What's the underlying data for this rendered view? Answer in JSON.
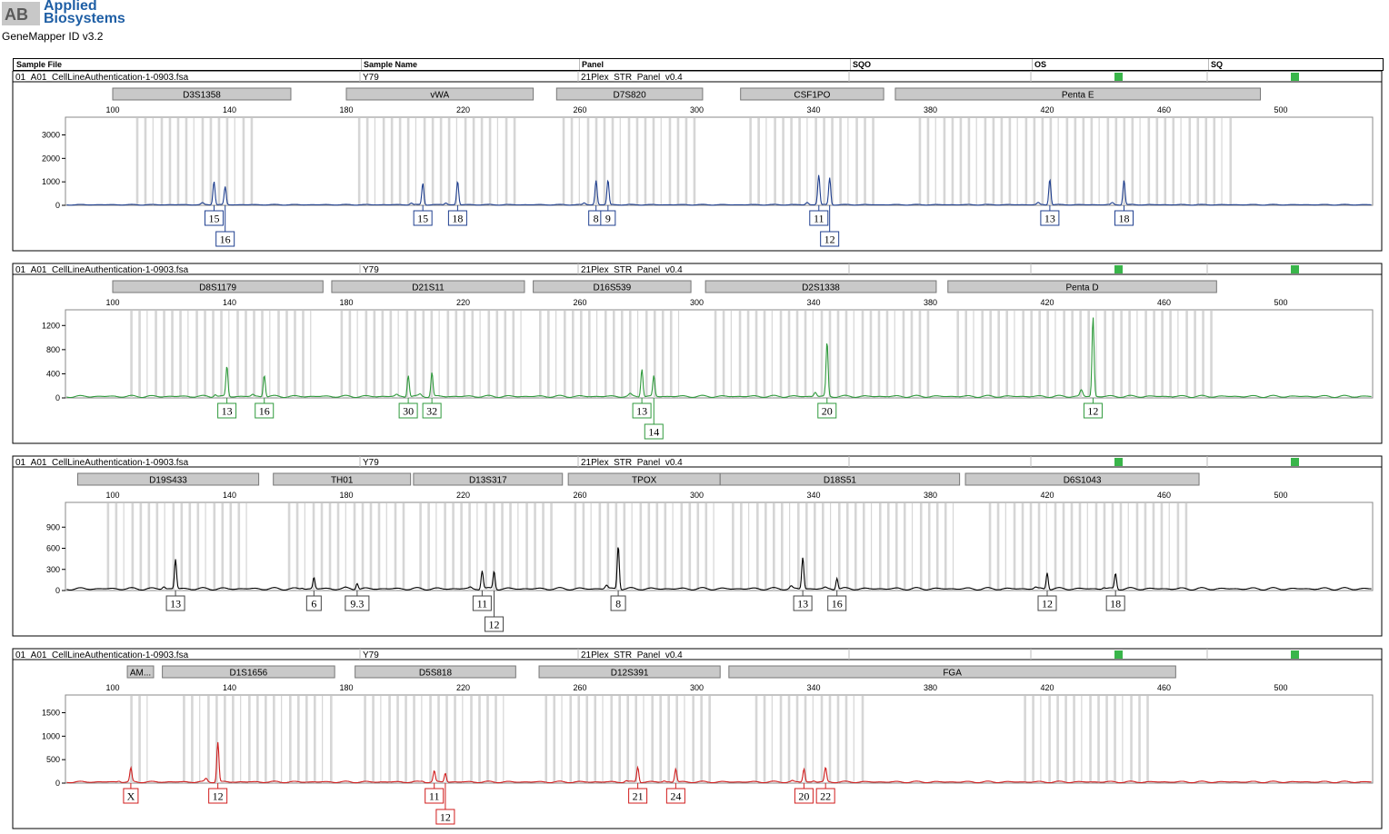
{
  "app": {
    "brand_lines": [
      "Applied",
      "Biosystems"
    ],
    "logo_letters": "AB",
    "version": "GeneMapper ID v3.2"
  },
  "table_header": {
    "sample_file": "Sample File",
    "sample_name": "Sample Name",
    "panel": "Panel",
    "sqo": "SQO",
    "os": "OS",
    "sq": "SQ"
  },
  "axis_ticks": [
    100,
    140,
    180,
    220,
    260,
    300,
    340,
    380,
    420,
    460,
    500
  ],
  "panels": [
    {
      "sample_file": "01_A01_CellLineAuthentication-1-0903.fsa",
      "sample_name": "Y79",
      "panel": "21Plex_STR_Panel_v0.4",
      "color": "#1f3f8f",
      "label_color": "#1f3f8f",
      "y_max": 3600,
      "y_ticks": [
        0,
        1000,
        2000,
        3000
      ],
      "markers": [
        {
          "name": "D3S1358",
          "from": 100,
          "to": 161
        },
        {
          "name": "vWA",
          "from": 180,
          "to": 244
        },
        {
          "name": "D7S820",
          "from": 252,
          "to": 302
        },
        {
          "name": "CSF1PO",
          "from": 315,
          "to": 364
        },
        {
          "name": "Penta E",
          "from": 368,
          "to": 493
        }
      ],
      "bins": [
        [
          108,
          150
        ],
        [
          184,
          240
        ],
        [
          254,
          300
        ],
        [
          318,
          362
        ],
        [
          376,
          484
        ]
      ],
      "peaks": [
        {
          "x": 134.7,
          "h": 950,
          "label": "15",
          "row": 0
        },
        {
          "x": 138.5,
          "h": 760,
          "label": "16",
          "row": 1
        },
        {
          "x": 206.2,
          "h": 920,
          "label": "15",
          "row": 0
        },
        {
          "x": 218.1,
          "h": 1000,
          "label": "18",
          "row": 0
        },
        {
          "x": 265.5,
          "h": 950,
          "label": "8",
          "row": 0
        },
        {
          "x": 269.6,
          "h": 1050,
          "label": "9",
          "row": 0
        },
        {
          "x": 341.8,
          "h": 1200,
          "label": "11",
          "row": 0
        },
        {
          "x": 345.5,
          "h": 1150,
          "label": "12",
          "row": 1
        },
        {
          "x": 420.9,
          "h": 1100,
          "label": "13",
          "row": 0
        },
        {
          "x": 446.3,
          "h": 1050,
          "label": "18",
          "row": 0
        }
      ]
    },
    {
      "sample_file": "01_A01_CellLineAuthentication-1-0903.fsa",
      "sample_name": "Y79",
      "panel": "21Plex_STR_Panel_v0.4",
      "color": "#2f9a3c",
      "label_color": "#2f9a3c",
      "y_max": 1400,
      "y_ticks": [
        0,
        400,
        800,
        1200
      ],
      "markers": [
        {
          "name": "D8S1179",
          "from": 100,
          "to": 172
        },
        {
          "name": "D21S11",
          "from": 175,
          "to": 241
        },
        {
          "name": "D16S539",
          "from": 244,
          "to": 298
        },
        {
          "name": "D2S1338",
          "from": 303,
          "to": 382
        },
        {
          "name": "Penta D",
          "from": 386,
          "to": 478
        }
      ],
      "bins": [
        [
          106,
          170
        ],
        [
          178,
          240
        ],
        [
          246,
          296
        ],
        [
          306,
          380
        ],
        [
          389,
          476
        ]
      ],
      "peaks": [
        {
          "x": 139.1,
          "h": 500,
          "label": "13",
          "row": 0
        },
        {
          "x": 151.9,
          "h": 360,
          "label": "16",
          "row": 0
        },
        {
          "x": 201.2,
          "h": 360,
          "label": "30",
          "row": 0
        },
        {
          "x": 209.3,
          "h": 400,
          "label": "32",
          "row": 0
        },
        {
          "x": 281.2,
          "h": 440,
          "label": "13",
          "row": 0
        },
        {
          "x": 285.3,
          "h": 340,
          "label": "14",
          "row": 1
        },
        {
          "x": 344.6,
          "h": 900,
          "label": "20",
          "row": 0
        },
        {
          "x": 435.7,
          "h": 1320,
          "label": "12",
          "row": 0
        }
      ]
    },
    {
      "sample_file": "01_A01_CellLineAuthentication-1-0903.fsa",
      "sample_name": "Y79",
      "panel": "21Plex_STR_Panel_v0.4",
      "color": "#000000",
      "label_color": "#444444",
      "y_max": 1200,
      "y_ticks": [
        0,
        300,
        600,
        900
      ],
      "markers": [
        {
          "name": "D19S433",
          "from": 88,
          "to": 150
        },
        {
          "name": "TH01",
          "from": 155,
          "to": 202
        },
        {
          "name": "D13S317",
          "from": 203,
          "to": 254
        },
        {
          "name": "TPOX",
          "from": 256,
          "to": 308
        },
        {
          "name": "D18S51",
          "from": 308,
          "to": 390
        },
        {
          "name": "D6S1043",
          "from": 392,
          "to": 472
        }
      ],
      "bins": [
        [
          98,
          148
        ],
        [
          160,
          200
        ],
        [
          205,
          250
        ],
        [
          258,
          306
        ],
        [
          312,
          388
        ],
        [
          400,
          470
        ]
      ],
      "peaks": [
        {
          "x": 121.5,
          "h": 420,
          "label": "13",
          "row": 0
        },
        {
          "x": 168.9,
          "h": 160,
          "label": "6",
          "row": 0
        },
        {
          "x": 183.7,
          "h": 90,
          "label": "9.3",
          "row": 0
        },
        {
          "x": 226.5,
          "h": 240,
          "label": "11",
          "row": 0
        },
        {
          "x": 230.6,
          "h": 250,
          "label": "12",
          "row": 1
        },
        {
          "x": 273.1,
          "h": 620,
          "label": "8",
          "row": 0
        },
        {
          "x": 336.3,
          "h": 450,
          "label": "13",
          "row": 0
        },
        {
          "x": 348.0,
          "h": 160,
          "label": "16",
          "row": 0
        },
        {
          "x": 420.0,
          "h": 240,
          "label": "12",
          "row": 0
        },
        {
          "x": 443.4,
          "h": 220,
          "label": "18",
          "row": 0
        }
      ]
    },
    {
      "sample_file": "01_A01_CellLineAuthentication-1-0903.fsa",
      "sample_name": "Y79",
      "panel": "21Plex_STR_Panel_v0.4",
      "color": "#d01c1c",
      "label_color": "#d01c1c",
      "y_max": 1800,
      "y_ticks": [
        0,
        500,
        1000,
        1500
      ],
      "markers": [
        {
          "name": "AM...",
          "from": 105,
          "to": 114
        },
        {
          "name": "D1S1656",
          "from": 117,
          "to": 176
        },
        {
          "name": "D5S818",
          "from": 183,
          "to": 238
        },
        {
          "name": "D12S391",
          "from": 246,
          "to": 308
        },
        {
          "name": "FGA",
          "from": 311,
          "to": 464
        }
      ],
      "bins": [
        [
          106,
          112
        ],
        [
          124,
          176
        ],
        [
          186,
          236
        ],
        [
          248,
          306
        ],
        [
          320,
          358
        ],
        [
          412,
          456
        ]
      ],
      "peaks": [
        {
          "x": 106.2,
          "h": 290,
          "label": "X",
          "row": 0
        },
        {
          "x": 136.0,
          "h": 850,
          "label": "12",
          "row": 0
        },
        {
          "x": 210.1,
          "h": 220,
          "label": "11",
          "row": 0
        },
        {
          "x": 213.9,
          "h": 190,
          "label": "12",
          "row": 1
        },
        {
          "x": 279.8,
          "h": 320,
          "label": "21",
          "row": 0
        },
        {
          "x": 292.8,
          "h": 280,
          "label": "24",
          "row": 0
        },
        {
          "x": 336.7,
          "h": 280,
          "label": "20",
          "row": 0
        },
        {
          "x": 344.1,
          "h": 300,
          "label": "22",
          "row": 0
        }
      ]
    }
  ]
}
